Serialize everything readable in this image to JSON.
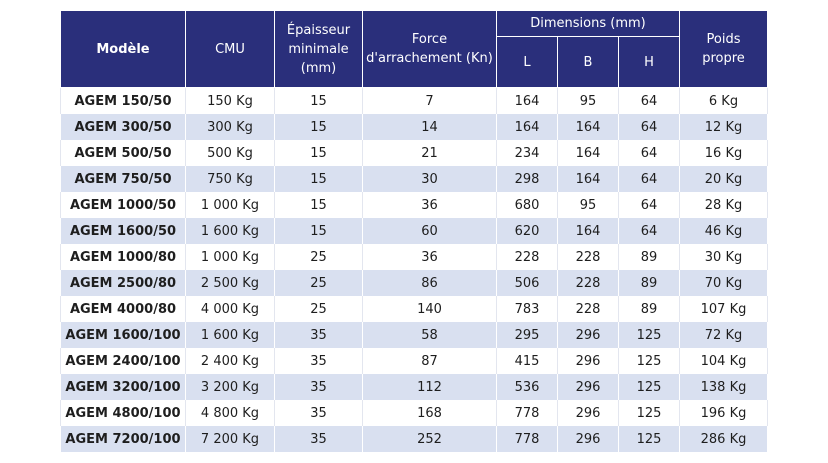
{
  "headers": {
    "model": "Modèle",
    "cmu": "CMU",
    "thickness": "Épaisseur minimale (mm)",
    "force": "Force d'arrachement (Kn)",
    "dimensions": "Dimensions (mm)",
    "dim_l": "L",
    "dim_b": "B",
    "dim_h": "H",
    "weight": "Poids propre"
  },
  "rows": [
    [
      "AGEM 150/50",
      "150 Kg",
      "15",
      "7",
      "164",
      "95",
      "64",
      "6 Kg"
    ],
    [
      "AGEM 300/50",
      "300 Kg",
      "15",
      "14",
      "164",
      "164",
      "64",
      "12 Kg"
    ],
    [
      "AGEM 500/50",
      "500 Kg",
      "15",
      "21",
      "234",
      "164",
      "64",
      "16 Kg"
    ],
    [
      "AGEM 750/50",
      "750 Kg",
      "15",
      "30",
      "298",
      "164",
      "64",
      "20 Kg"
    ],
    [
      "AGEM 1000/50",
      "1 000 Kg",
      "15",
      "36",
      "680",
      "95",
      "64",
      "28 Kg"
    ],
    [
      "AGEM 1600/50",
      "1 600 Kg",
      "15",
      "60",
      "620",
      "164",
      "64",
      "46 Kg"
    ],
    [
      "AGEM 1000/80",
      "1 000 Kg",
      "25",
      "36",
      "228",
      "228",
      "89",
      "30 Kg"
    ],
    [
      "AGEM 2500/80",
      "2 500 Kg",
      "25",
      "86",
      "506",
      "228",
      "89",
      "70 Kg"
    ],
    [
      "AGEM 4000/80",
      "4 000 Kg",
      "25",
      "140",
      "783",
      "228",
      "89",
      "107 Kg"
    ],
    [
      "AGEM 1600/100",
      "1 600 Kg",
      "35",
      "58",
      "295",
      "296",
      "125",
      "72 Kg"
    ],
    [
      "AGEM 2400/100",
      "2 400 Kg",
      "35",
      "87",
      "415",
      "296",
      "125",
      "104 Kg"
    ],
    [
      "AGEM 3200/100",
      "3 200 Kg",
      "35",
      "112",
      "536",
      "296",
      "125",
      "138 Kg"
    ],
    [
      "AGEM 4800/100",
      "4 800 Kg",
      "35",
      "168",
      "778",
      "296",
      "125",
      "196 Kg"
    ],
    [
      "AGEM 7200/100",
      "7 200 Kg",
      "35",
      "252",
      "778",
      "296",
      "125",
      "286 Kg"
    ]
  ],
  "colors": {
    "header_bg": "#2a2f7b",
    "header_text": "#ffffff",
    "stripe": "#d9e0f0",
    "row_bg": "#ffffff"
  }
}
